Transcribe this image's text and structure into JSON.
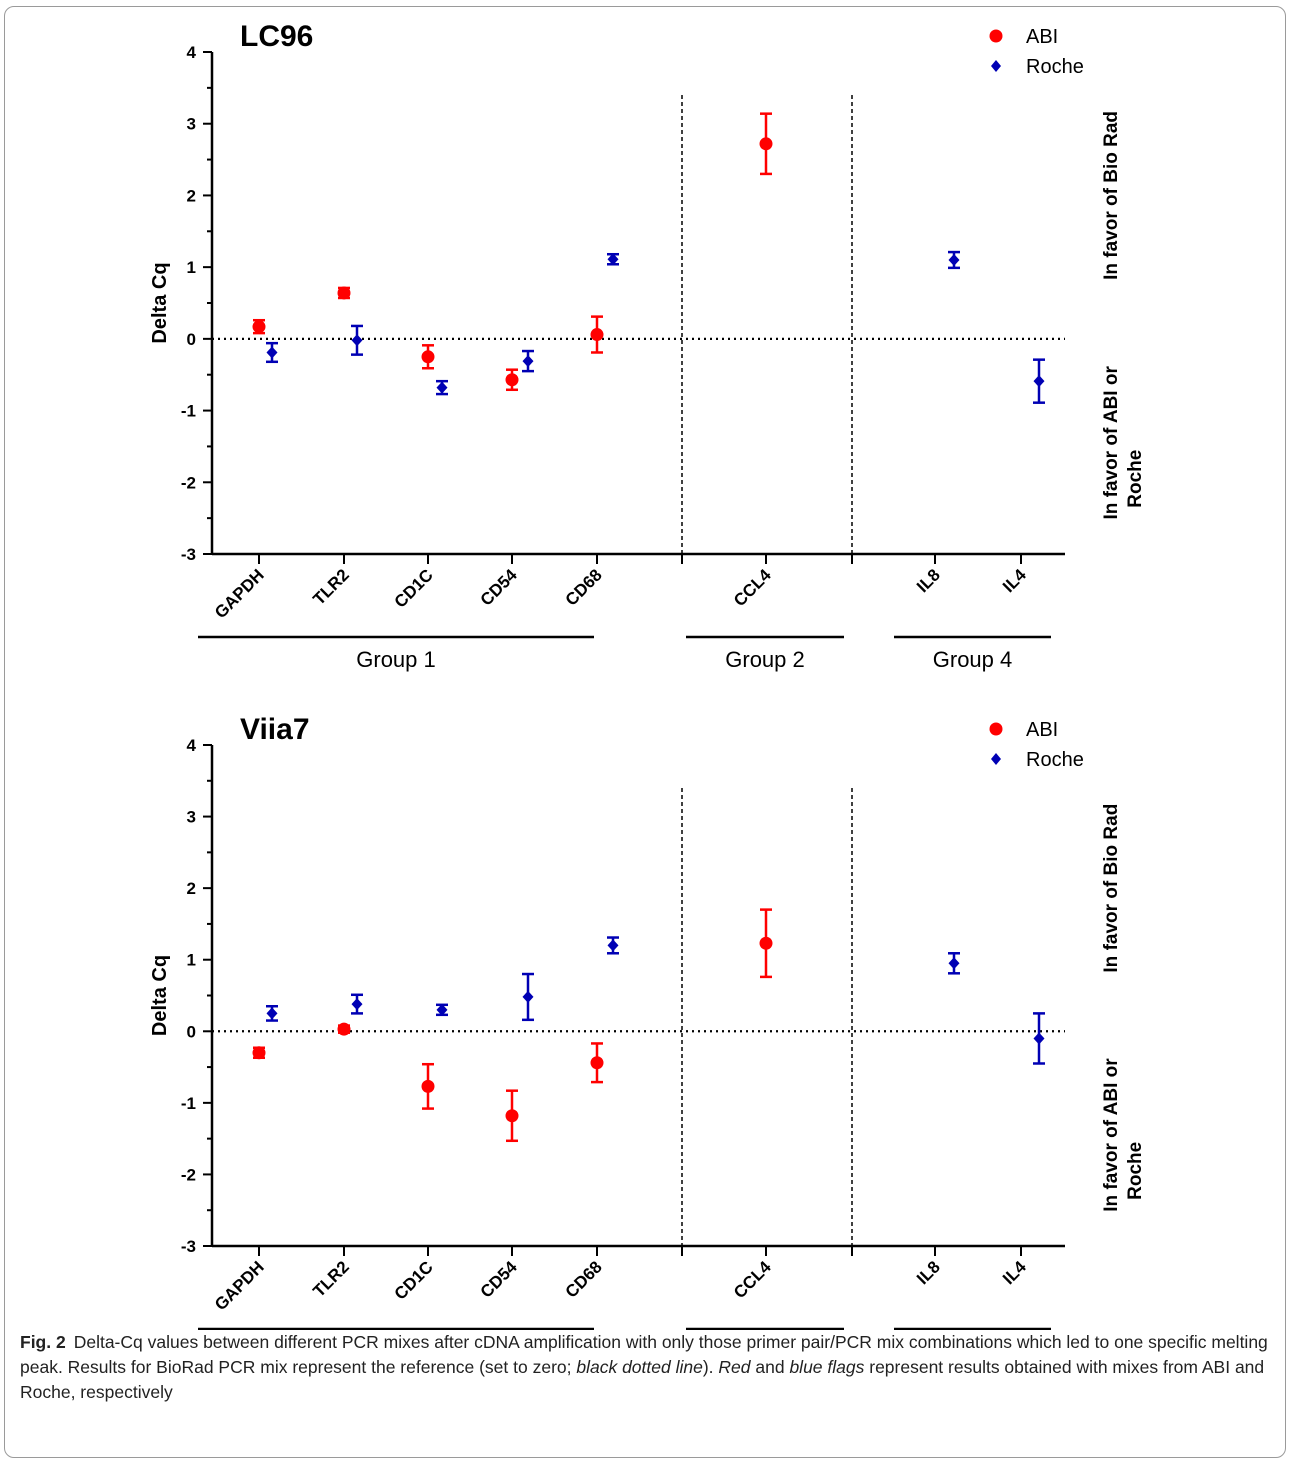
{
  "caption": {
    "label": "Fig. 2",
    "parts": [
      "Delta-Cq values between different PCR mixes after cDNA amplification with only those primer pair/PCR mix combinations which led to one specific melting peak. Results for BioRad PCR mix represent the reference (set to zero; ",
      "black dotted line",
      "). ",
      "Red",
      " and ",
      "blue flags",
      " represent results obtained with mixes from ABI and Roche, respectively"
    ]
  },
  "colors": {
    "ABI": "#ff0000",
    "Roche": "#0000b4"
  },
  "chart_data": [
    {
      "type": "scatter",
      "title": "LC96",
      "ylabel": "Delta Cq",
      "xlabel": "",
      "ylim": [
        -3,
        4
      ],
      "yticks": [
        "4",
        "3",
        "2",
        "1",
        "0",
        "-1",
        "-2",
        "-3"
      ],
      "categories": [
        "GAPDH",
        "TLR2",
        "CD1C",
        "CD54",
        "CD68",
        "CCL4",
        "IL8",
        "IL4"
      ],
      "legend": [
        "ABI",
        "Roche"
      ],
      "legend_position": "top-right",
      "reference_line": 0,
      "groups": [
        "Group 1",
        "Group 2",
        "Group 4"
      ],
      "side_labels": {
        "upper": "In favor of Bio Rad",
        "lower": [
          "In favor of ABI or",
          "Roche"
        ]
      },
      "series": [
        {
          "name": "ABI",
          "points": [
            {
              "category": "GAPDH",
              "y": 0.17,
              "err": 0.09
            },
            {
              "category": "TLR2",
              "y": 0.64,
              "err": 0.07
            },
            {
              "category": "CD1C",
              "y": -0.25,
              "err": 0.16
            },
            {
              "category": "CD54",
              "y": -0.57,
              "err": 0.14
            },
            {
              "category": "CD68",
              "y": 0.06,
              "err": 0.25
            },
            {
              "category": "CCL4",
              "y": 2.72,
              "err": 0.42
            }
          ]
        },
        {
          "name": "Roche",
          "points": [
            {
              "category": "GAPDH",
              "y": -0.19,
              "err": 0.13
            },
            {
              "category": "TLR2",
              "y": -0.02,
              "err": 0.2
            },
            {
              "category": "CD1C",
              "y": -0.68,
              "err": 0.09
            },
            {
              "category": "CD54",
              "y": -0.31,
              "err": 0.14
            },
            {
              "category": "CD68",
              "y": 1.11,
              "err": 0.07
            },
            {
              "category": "IL8",
              "y": 1.1,
              "err": 0.11
            },
            {
              "category": "IL4",
              "y": -0.59,
              "err": 0.3
            }
          ]
        }
      ]
    },
    {
      "type": "scatter",
      "title": "Viia7",
      "ylabel": "Delta Cq",
      "xlabel": "",
      "ylim": [
        -3,
        4
      ],
      "yticks": [
        "4",
        "3",
        "2",
        "1",
        "0",
        "-1",
        "-2",
        "-3"
      ],
      "categories": [
        "GAPDH",
        "TLR2",
        "CD1C",
        "CD54",
        "CD68",
        "CCL4",
        "IL8",
        "IL4"
      ],
      "legend": [
        "ABI",
        "Roche"
      ],
      "legend_position": "top-right",
      "reference_line": 0,
      "groups": [
        "Group 1",
        "Group 2",
        "Group 4"
      ],
      "side_labels": {
        "upper": "In favor of Bio Rad",
        "lower": [
          "In favor of ABI or",
          "Roche"
        ]
      },
      "series": [
        {
          "name": "ABI",
          "points": [
            {
              "category": "GAPDH",
              "y": -0.3,
              "err": 0.07
            },
            {
              "category": "TLR2",
              "y": 0.03,
              "err": 0.05
            },
            {
              "category": "CD1C",
              "y": -0.77,
              "err": 0.31
            },
            {
              "category": "CD54",
              "y": -1.18,
              "err": 0.35
            },
            {
              "category": "CD68",
              "y": -0.44,
              "err": 0.27
            },
            {
              "category": "CCL4",
              "y": 1.23,
              "err": 0.47
            }
          ]
        },
        {
          "name": "Roche",
          "points": [
            {
              "category": "GAPDH",
              "y": 0.25,
              "err": 0.1
            },
            {
              "category": "TLR2",
              "y": 0.38,
              "err": 0.13
            },
            {
              "category": "CD1C",
              "y": 0.3,
              "err": 0.07
            },
            {
              "category": "CD54",
              "y": 0.48,
              "err": 0.32
            },
            {
              "category": "CD68",
              "y": 1.2,
              "err": 0.11
            },
            {
              "category": "IL8",
              "y": 0.95,
              "err": 0.14
            },
            {
              "category": "IL4",
              "y": -0.1,
              "err": 0.35
            }
          ]
        }
      ]
    }
  ]
}
